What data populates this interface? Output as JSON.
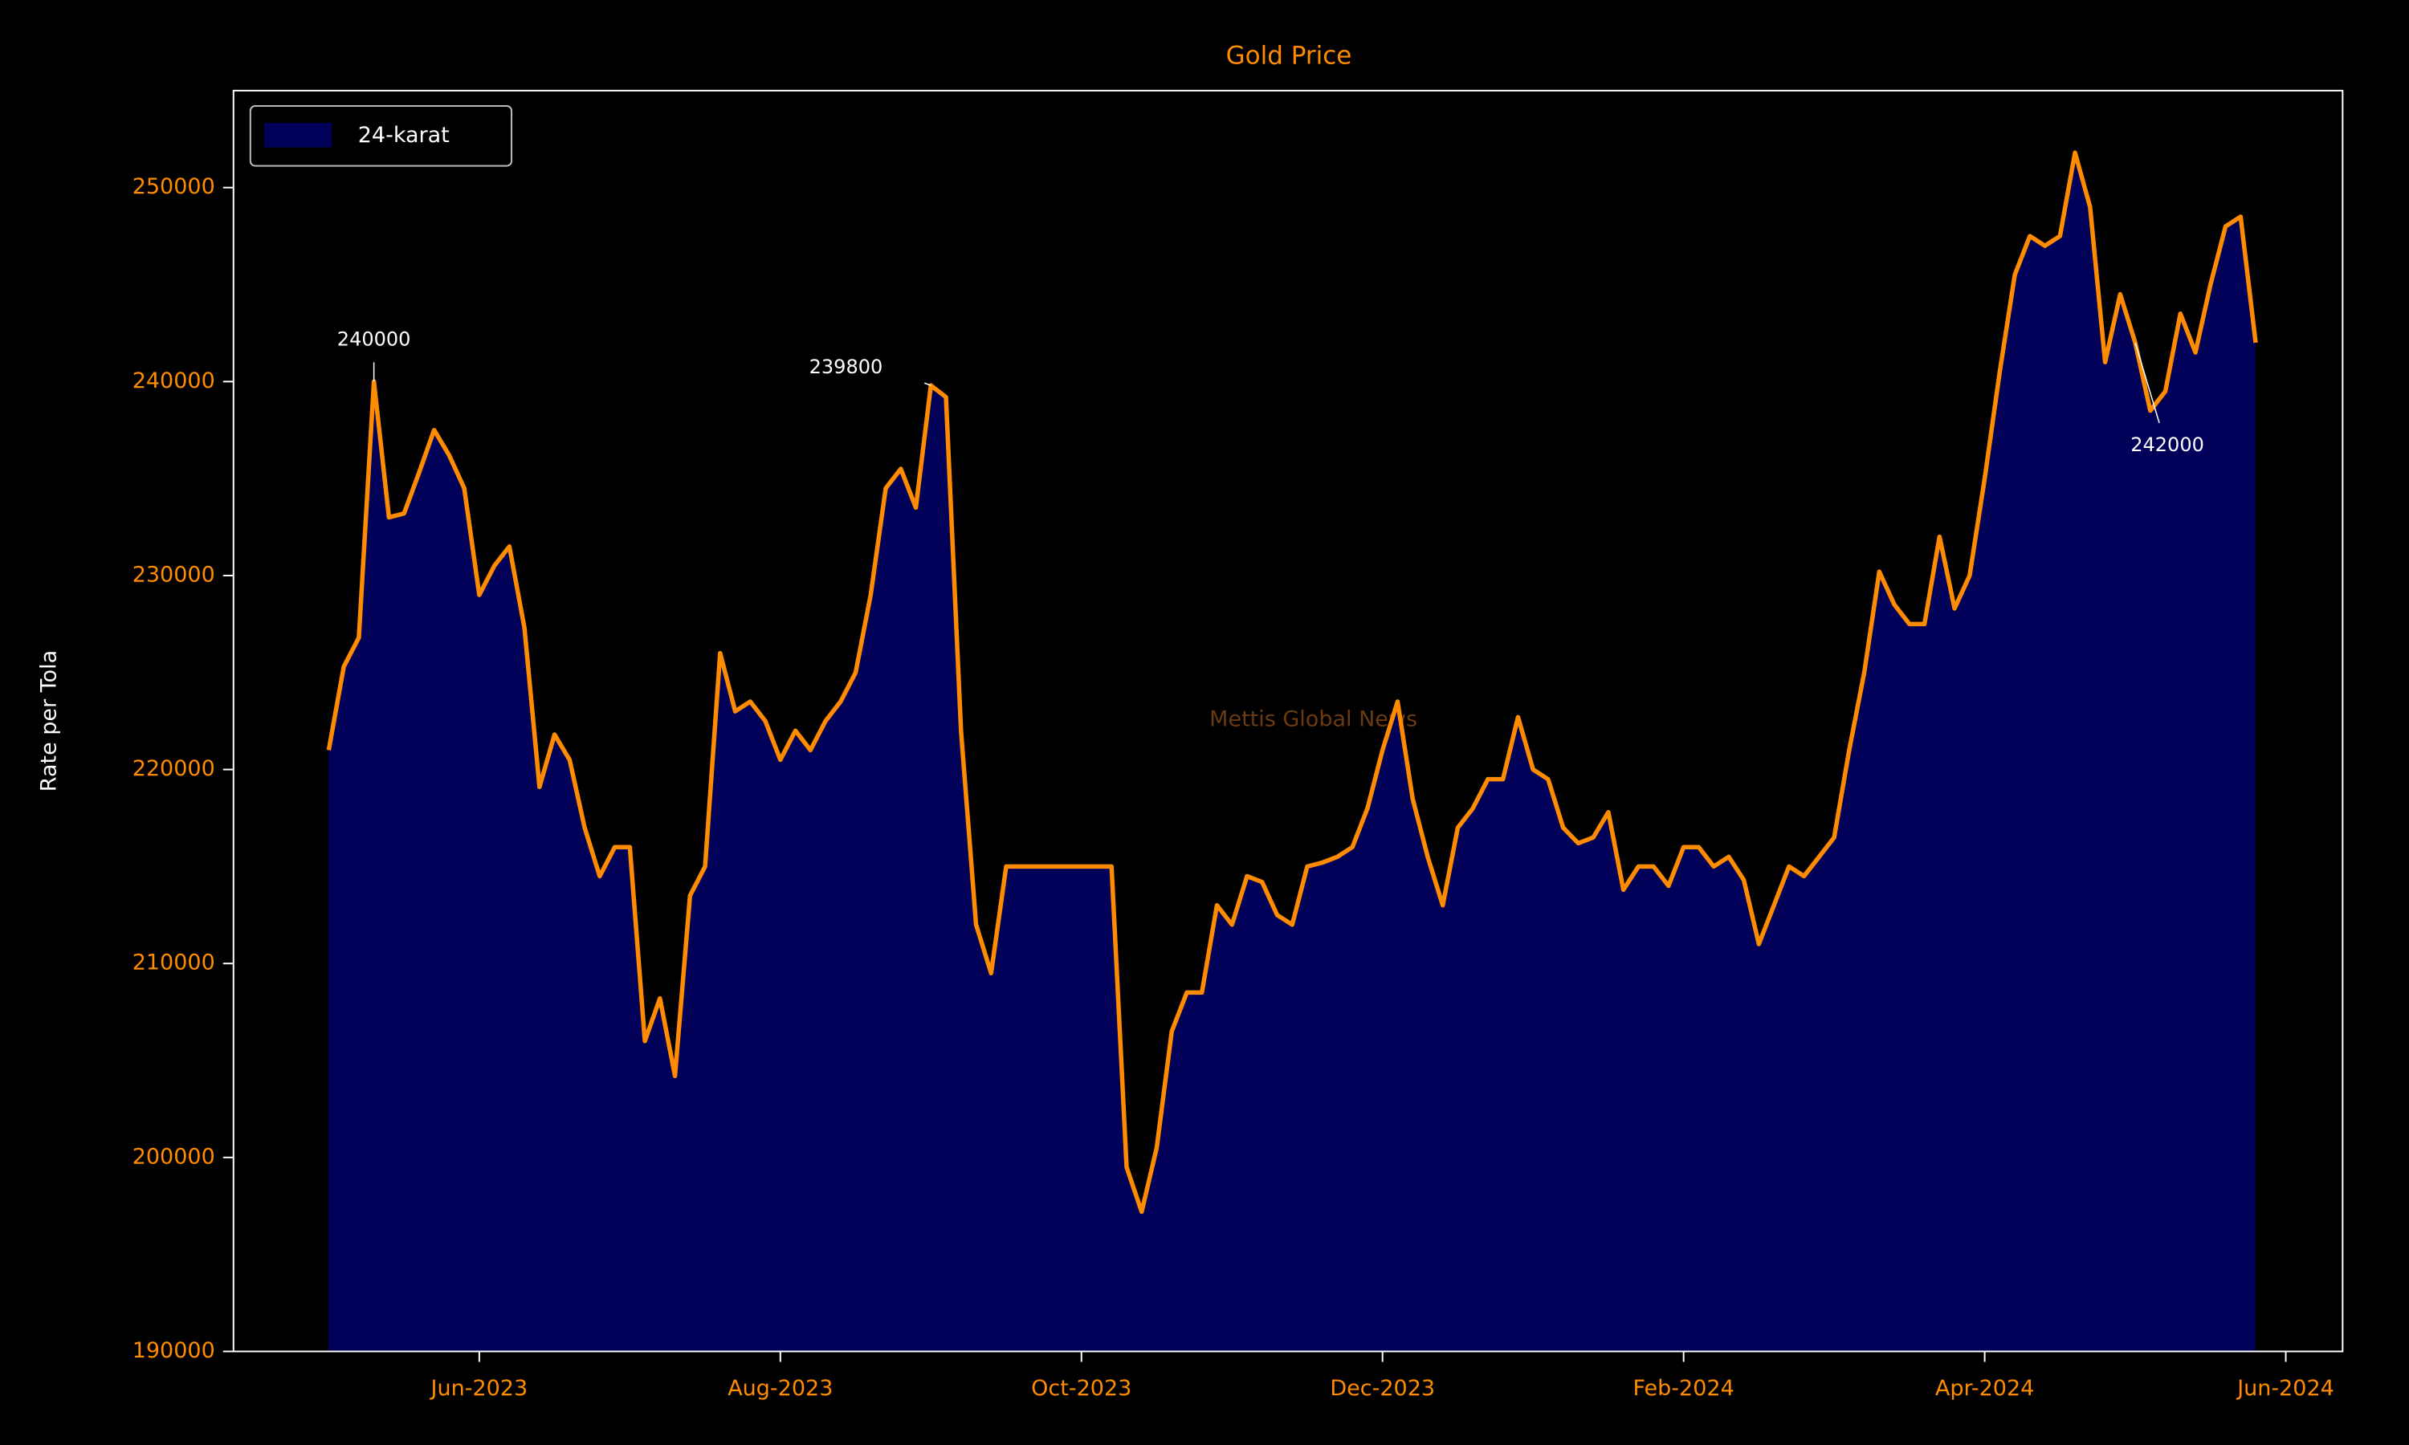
{
  "chart_data": {
    "type": "area",
    "title": "Gold Price",
    "ylabel": "Rate per Tola",
    "watermark": "Mettis Global News",
    "legend": "upper left",
    "categories": [
      null,
      null,
      null,
      null,
      null,
      null,
      null,
      null,
      null,
      null,
      "Jun-2023",
      null,
      null,
      null,
      null,
      null,
      null,
      null,
      null,
      null,
      null,
      null,
      null,
      null,
      null,
      null,
      null,
      null,
      null,
      null,
      "Aug-2023",
      null,
      null,
      null,
      null,
      null,
      null,
      null,
      null,
      null,
      null,
      null,
      null,
      null,
      null,
      null,
      null,
      null,
      null,
      null,
      "Oct-2023",
      null,
      null,
      null,
      null,
      null,
      null,
      null,
      null,
      null,
      null,
      null,
      null,
      null,
      null,
      null,
      null,
      null,
      null,
      null,
      "Dec-2023",
      null,
      null,
      null,
      null,
      null,
      null,
      null,
      null,
      null,
      null,
      null,
      null,
      null,
      null,
      null,
      null,
      null,
      null,
      null,
      "Feb-2024",
      null,
      null,
      null,
      null,
      null,
      null,
      null,
      null,
      null,
      null,
      null,
      null,
      null,
      null,
      null,
      null,
      null,
      null,
      null,
      "Apr-2024",
      null,
      null,
      null,
      null,
      null,
      null,
      null,
      null,
      null,
      null,
      null,
      null,
      null,
      null,
      null,
      null,
      null,
      null,
      null,
      "Jun-2024"
    ],
    "series": [
      {
        "name": "24-karat",
        "color": "#ff8c00",
        "fill": "#000058",
        "values": [
          221000,
          225300,
          226800,
          240000,
          233000,
          233200,
          235300,
          237500,
          236200,
          234500,
          229000,
          230500,
          231500,
          227300,
          219100,
          221800,
          220500,
          217000,
          214500,
          216000,
          216000,
          206000,
          208200,
          204200,
          213500,
          215000,
          226000,
          223000,
          223500,
          222500,
          220500,
          222000,
          221000,
          222500,
          223500,
          225000,
          229000,
          234500,
          235500,
          233500,
          239800,
          239200,
          222000,
          212000,
          209500,
          215000,
          215000,
          215000,
          215000,
          215000,
          215000,
          215000,
          215000,
          199500,
          197200,
          200500,
          206500,
          208500,
          208500,
          213000,
          212000,
          214500,
          214200,
          212500,
          212000,
          215000,
          215200,
          215500,
          216000,
          218000,
          221000,
          223500,
          218500,
          215500,
          213000,
          217000,
          218000,
          219500,
          219500,
          222700,
          220000,
          219500,
          217000,
          216200,
          216500,
          217800,
          213800,
          215000,
          215000,
          214000,
          216000,
          216000,
          215000,
          215500,
          214300,
          211000,
          213000,
          215000,
          214500,
          215500,
          216500,
          221000,
          225000,
          230200,
          228500,
          227500,
          227500,
          232000,
          228300,
          230000,
          235000,
          240500,
          245500,
          247500,
          247000,
          247500,
          251800,
          249000,
          241000,
          244500,
          242000,
          238500,
          239500,
          243500,
          241500,
          245000,
          248000,
          248500,
          242000,
          null,
          null
        ]
      }
    ],
    "annotations": [
      240000,
      239800,
      242000
    ],
    "ylim": [
      190000,
      255000
    ],
    "yticks": [
      190000,
      200000,
      210000,
      220000,
      230000,
      240000,
      250000
    ]
  }
}
